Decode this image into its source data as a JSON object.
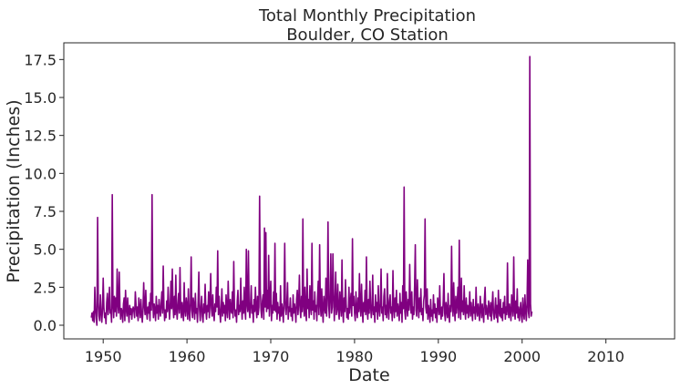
{
  "chart_data": {
    "type": "line",
    "title_line1": "Total Monthly Precipitation",
    "title_line2": "Boulder, CO Station",
    "xlabel": "Date",
    "ylabel": "Precipitation (Inches)",
    "xlim": [
      1945.3,
      2018.2
    ],
    "ylim": [
      -0.9,
      18.6
    ],
    "xticks": [
      "1950",
      "1960",
      "1970",
      "1980",
      "1990",
      "2000",
      "2010"
    ],
    "yticks": [
      "0.0",
      "2.5",
      "5.0",
      "7.5",
      "10.0",
      "12.5",
      "15.0",
      "17.5"
    ],
    "grid": false,
    "legend": "none",
    "line_color": "#800080",
    "series": [
      {
        "start": "1948-08",
        "frequency": "monthly",
        "values": [
          0.5,
          0.8,
          0.3,
          0.9,
          0.2,
          2.5,
          1.1,
          0.4,
          0.0,
          7.1,
          1.5,
          0.6,
          0.3,
          2.0,
          0.9,
          0.2,
          1.0,
          3.1,
          1.2,
          0.5,
          0.8,
          0.1,
          1.5,
          2.1,
          0.7,
          1.2,
          2.5,
          0.8,
          1.0,
          0.2,
          8.6,
          1.3,
          0.5,
          1.9,
          0.9,
          1.8,
          0.6,
          3.7,
          1.4,
          0.8,
          3.5,
          1.2,
          0.4,
          1.1,
          0.9,
          0.2,
          1.4,
          1.8,
          0.3,
          2.3,
          1.1,
          0.6,
          1.8,
          0.9,
          0.2,
          1.3,
          0.7,
          1.1,
          0.4,
          1.0,
          1.2,
          0.9,
          0.5,
          2.2,
          1.4,
          0.6,
          1.2,
          0.3,
          1.8,
          1.1,
          0.5,
          1.7,
          0.8,
          0.2,
          1.0,
          2.8,
          1.3,
          0.7,
          2.3,
          0.9,
          0.4,
          1.2,
          0.8,
          1.5,
          0.3,
          2.1,
          1.0,
          8.6,
          1.6,
          0.5,
          1.4,
          1.0,
          0.3,
          1.9,
          0.8,
          1.3,
          0.4,
          1.7,
          1.1,
          0.6,
          1.4,
          2.2,
          0.8,
          3.9,
          1.2,
          0.3,
          1.0,
          0.5,
          1.6,
          0.9,
          2.5,
          1.3,
          0.4,
          1.2,
          2.9,
          1.1,
          3.7,
          1.3,
          0.5,
          1.9,
          0.7,
          3.3,
          1.0,
          0.4,
          1.4,
          2.1,
          0.8,
          3.8,
          1.2,
          0.5,
          1.5,
          0.9,
          0.3,
          2.8,
          1.0,
          0.6,
          1.8,
          1.2,
          0.4,
          2.4,
          0.9,
          0.3,
          1.5,
          4.5,
          1.0,
          0.5,
          1.8,
          1.3,
          0.4,
          2.1,
          0.8,
          1.1,
          0.2,
          1.6,
          3.5,
          1.0,
          0.3,
          1.2,
          1.9,
          0.6,
          0.2,
          1.4,
          0.8,
          2.7,
          1.0,
          0.4,
          1.3,
          0.9,
          2.2,
          0.5,
          1.5,
          3.4,
          1.1,
          0.6,
          2.0,
          0.8,
          0.3,
          1.4,
          0.9,
          2.5,
          1.2,
          4.9,
          0.7,
          1.9,
          0.9,
          0.2,
          1.1,
          2.4,
          0.6,
          1.5,
          0.8,
          1.3,
          0.3,
          2.0,
          1.0,
          0.5,
          2.9,
          1.3,
          0.4,
          1.7,
          1.0,
          0.8,
          2.2,
          0.5,
          4.2,
          1.2,
          0.6,
          1.0,
          0.2,
          1.6,
          2.3,
          0.7,
          1.3,
          0.9,
          3.1,
          1.2,
          0.4,
          1.6,
          0.8,
          2.5,
          1.0,
          0.4,
          5.0,
          1.4,
          0.9,
          4.9,
          1.1,
          0.5,
          1.4,
          2.6,
          0.8,
          1.3,
          0.2,
          1.7,
          0.9,
          2.5,
          1.1,
          0.5,
          1.9,
          0.7,
          1.2,
          8.5,
          2.4,
          1.0,
          0.5,
          1.6,
          2.0,
          0.4,
          6.4,
          1.2,
          6.1,
          0.9,
          2.3,
          1.1,
          4.6,
          0.6,
          1.8,
          2.9,
          0.3,
          1.3,
          0.8,
          2.2,
          1.0,
          5.4,
          0.9,
          2.1,
          0.4,
          1.5,
          0.8,
          1.2,
          0.3,
          2.6,
          0.6,
          1.4,
          0.9,
          0.2,
          1.8,
          5.4,
          1.1,
          0.7,
          1.5,
          2.8,
          0.4,
          1.2,
          0.9,
          1.8,
          0.6,
          1.1,
          0.3,
          2.0,
          0.8,
          1.4,
          1.0,
          0.2,
          1.7,
          2.3,
          0.7,
          1.5,
          3.3,
          1.0,
          0.5,
          1.9,
          0.9,
          7.0,
          1.3,
          0.6,
          2.5,
          0.9,
          0.3,
          3.7,
          1.1,
          1.7,
          0.5,
          2.6,
          1.2,
          0.7,
          5.4,
          1.0,
          1.6,
          0.4,
          2.2,
          0.9,
          1.3,
          0.3,
          1.8,
          2.9,
          0.7,
          5.3,
          1.4,
          0.6,
          2.4,
          1.0,
          0.2,
          1.9,
          1.2,
          0.8,
          3.1,
          0.6,
          2.0,
          6.8,
          1.3,
          0.5,
          1.9,
          4.7,
          0.8,
          1.2,
          4.7,
          2.0,
          0.3,
          1.6,
          3.5,
          0.7,
          1.1,
          2.7,
          0.9,
          0.4,
          2.2,
          1.3,
          0.6,
          4.3,
          1.0,
          0.2,
          1.8,
          0.9,
          3.0,
          1.4,
          0.5,
          1.1,
          0.4,
          2.5,
          0.8,
          1.5,
          2.1,
          0.6,
          5.7,
          1.3,
          1.9,
          0.8,
          0.3,
          2.2,
          1.0,
          0.5,
          1.8,
          0.9,
          3.4,
          1.2,
          0.6,
          2.7,
          1.1,
          0.2,
          1.5,
          0.9,
          2.3,
          0.7,
          4.5,
          1.0,
          0.4,
          1.7,
          0.8,
          2.9,
          1.3,
          0.5,
          1.1,
          3.3,
          0.7,
          1.2,
          0.2,
          2.0,
          0.9,
          1.5,
          0.4,
          2.6,
          1.1,
          0.6,
          1.4,
          3.7,
          0.8,
          1.2,
          0.3,
          1.9,
          2.4,
          0.7,
          1.3,
          0.5,
          3.4,
          1.0,
          0.4,
          1.6,
          2.0,
          0.8,
          1.2,
          0.3,
          3.6,
          1.1,
          0.5,
          1.8,
          0.9,
          2.3,
          0.6,
          1.4,
          1.0,
          0.3,
          2.1,
          0.8,
          1.5,
          0.2,
          2.6,
          1.1,
          9.1,
          0.9,
          0.4,
          2.2,
          1.3,
          0.6,
          1.7,
          1.0,
          4.0,
          1.5,
          0.8,
          2.2,
          0.4,
          1.2,
          0.7,
          2.6,
          5.3,
          1.0,
          0.6,
          3.0,
          1.4,
          0.5,
          1.8,
          0.9,
          2.4,
          0.7,
          1.1,
          0.3,
          1.6,
          2.0,
          7.0,
          1.2,
          0.8,
          2.4,
          0.4,
          1.3,
          0.9,
          0.2,
          1.7,
          0.6,
          1.0,
          0.3,
          2.0,
          0.8,
          1.4,
          0.5,
          1.1,
          0.2,
          1.8,
          1.3,
          0.7,
          2.6,
          0.9,
          0.4,
          1.2,
          0.6,
          1.6,
          3.4,
          0.8,
          0.3,
          1.5,
          1.0,
          0.5,
          2.1,
          0.7,
          0.2,
          1.3,
          0.9,
          5.2,
          1.4,
          0.6,
          2.8,
          1.1,
          0.3,
          1.9,
          0.8,
          1.4,
          2.5,
          0.5,
          5.6,
          1.2,
          0.4,
          3.1,
          0.9,
          1.6,
          0.7,
          2.6,
          1.0,
          0.4,
          1.8,
          0.8,
          1.3,
          0.5,
          1.1,
          2.2,
          0.6,
          1.5,
          0.9,
          0.3,
          1.7,
          0.8,
          1.2,
          0.4,
          2.5,
          1.0,
          0.6,
          1.4,
          0.9,
          0.3,
          1.9,
          1.1,
          0.5,
          1.4,
          0.8,
          0.2,
          1.7,
          2.5,
          0.7,
          1.3,
          0.9,
          0.4,
          1.6,
          1.1,
          0.6,
          1.5,
          0.3,
          1.2,
          2.2,
          0.8,
          0.4,
          1.0,
          1.8,
          0.5,
          1.3,
          0.2,
          2.3,
          0.9,
          0.6,
          1.7,
          0.5,
          1.1,
          0.3,
          1.5,
          0.8,
          1.9,
          0.4,
          1.2,
          0.7,
          4.1,
          1.0,
          0.5,
          1.4,
          0.9,
          0.3,
          2.0,
          1.2,
          0.6,
          4.5,
          1.0,
          0.4,
          1.6,
          0.8,
          2.4,
          0.5,
          1.2,
          0.3,
          0.9,
          1.5,
          0.6,
          0.2,
          1.8,
          0.8,
          0.4,
          2.0,
          1.0,
          0.3,
          1.4,
          4.3,
          0.9,
          0.5,
          17.7,
          1.4,
          0.6,
          0.9
        ]
      }
    ]
  }
}
